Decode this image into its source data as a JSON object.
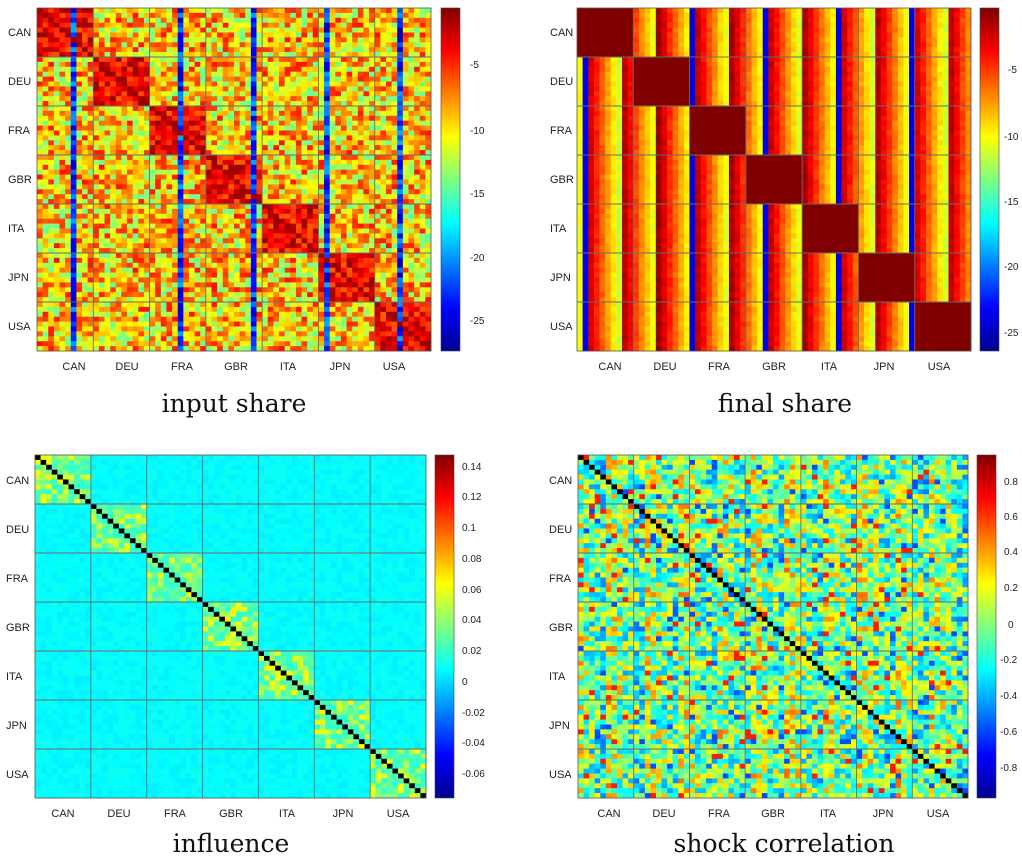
{
  "chart_data": [
    {
      "type": "heatmap",
      "title": "input share",
      "rows": [
        "CAN",
        "DEU",
        "FRA",
        "GBR",
        "ITA",
        "JPN",
        "USA"
      ],
      "cols": [
        "CAN",
        "DEU",
        "FRA",
        "GBR",
        "ITA",
        "JPN",
        "USA"
      ],
      "colorbar_range": [
        -27.5,
        0
      ],
      "colorbar_ticks": [
        -5,
        -10,
        -15,
        -20,
        -25
      ],
      "colormap": "jet",
      "pattern": "block-diagonal high values, mostly -3 to -12 elsewhere, dark blue vertical streaks"
    },
    {
      "type": "heatmap",
      "title": "final share",
      "rows": [
        "CAN",
        "DEU",
        "FRA",
        "GBR",
        "ITA",
        "JPN",
        "USA"
      ],
      "cols": [
        "CAN",
        "DEU",
        "FRA",
        "GBR",
        "ITA",
        "JPN",
        "USA"
      ],
      "colorbar_range": [
        -26.5,
        0
      ],
      "colorbar_ticks": [
        -5,
        -10,
        -15,
        -20,
        -25
      ],
      "colormap": "jet",
      "pattern": "diagonal blocks at maximum, column-striped values elsewhere"
    },
    {
      "type": "heatmap",
      "title": "influence",
      "rows": [
        "CAN",
        "DEU",
        "FRA",
        "GBR",
        "ITA",
        "JPN",
        "USA"
      ],
      "cols": [
        "CAN",
        "DEU",
        "FRA",
        "GBR",
        "ITA",
        "JPN",
        "USA"
      ],
      "colorbar_range": [
        -0.075,
        0.148
      ],
      "colorbar_ticks": [
        0.14,
        0.12,
        0.1,
        0.08,
        0.06,
        0.04,
        0.02,
        0,
        -0.02,
        -0.04,
        -0.06
      ],
      "colormap": "jet",
      "pattern": "near zero everywhere, small positive diagonal blocks, dark diagonal line"
    },
    {
      "type": "heatmap",
      "title": "shock correlation",
      "rows": [
        "CAN",
        "DEU",
        "FRA",
        "GBR",
        "ITA",
        "JPN",
        "USA"
      ],
      "cols": [
        "CAN",
        "DEU",
        "FRA",
        "GBR",
        "ITA",
        "JPN",
        "USA"
      ],
      "colorbar_range": [
        -0.97,
        0.97
      ],
      "colorbar_ticks": [
        0.8,
        0.6,
        0.4,
        0.2,
        0,
        -0.2,
        -0.4,
        -0.6,
        -0.8
      ],
      "colormap": "jet",
      "pattern": "noisy values mostly between -0.4 and 0.4, dark diagonal line"
    }
  ]
}
